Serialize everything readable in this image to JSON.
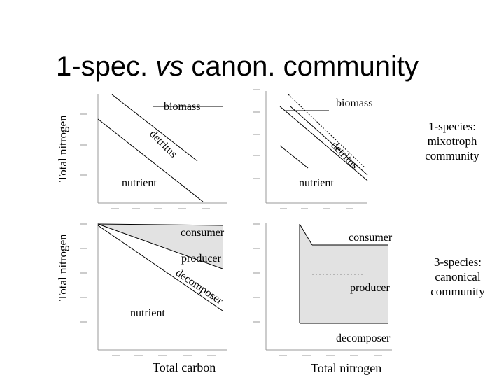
{
  "slide": {
    "title_prefix": "1-spec. ",
    "title_vs": "vs",
    "title_suffix": " canon. community",
    "ylabel_top": "Total nitrogen",
    "ylabel_bottom": "Total nitrogen",
    "xlabel_left": "Total carbon",
    "xlabel_right": "Total nitrogen",
    "note_top": [
      "1-species:",
      "mixotroph",
      "community"
    ],
    "note_bottom": [
      "3-species:",
      "canonical",
      "community"
    ]
  },
  "panels": {
    "top_left": {
      "biomass": "biomass",
      "detritus": "detritus",
      "nutrient": "nutrient"
    },
    "top_right": {
      "biomass": "biomass",
      "detritus": "detritus",
      "nutrient": "nutrient"
    },
    "bottom_left": {
      "consumer": "consumer",
      "producer": "producer",
      "decomposer": "decomposer",
      "nutrient": "nutrient"
    },
    "bottom_right": {
      "consumer": "consumer",
      "producer": "producer",
      "decomposer": "decomposer"
    }
  },
  "colors": {
    "fill": "#e2e2e2",
    "line": "#000000",
    "tick": "#999999"
  }
}
